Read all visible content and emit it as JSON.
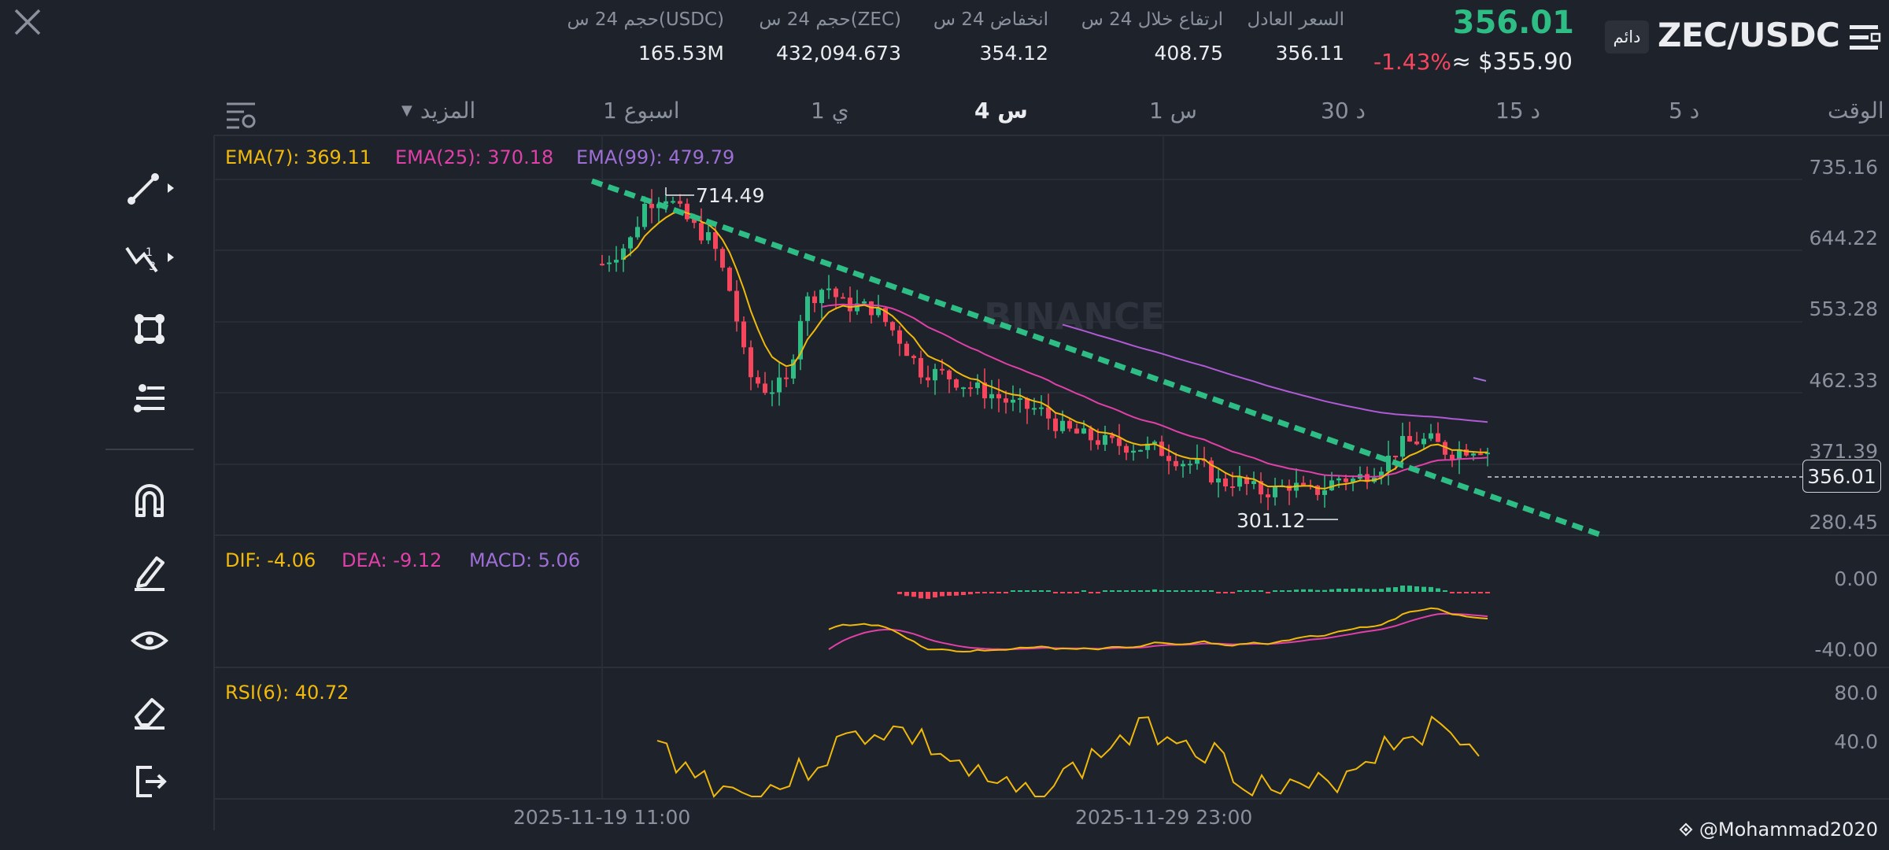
{
  "header": {
    "symbol": "ZEC/USDC",
    "badge": "دائم",
    "last_price": "356.01",
    "change_pct": "-1.43%",
    "price_usd": "≈ $355.90",
    "stats": [
      {
        "label": "السعر العادل",
        "value": "356.11"
      },
      {
        "label": "ارتفاع خلال 24 س",
        "value": "408.75"
      },
      {
        "label": "انخفاض 24 س",
        "value": "354.12"
      },
      {
        "label": "حجم 24 س(ZEC)",
        "value": "432,094.673"
      },
      {
        "label": "حجم 24 س(USDC)",
        "value": "165.53M"
      }
    ]
  },
  "timeframes": {
    "label": "الوقت",
    "items": [
      "5 د",
      "15 د",
      "30 د",
      "1 س",
      "4 س",
      "1 ي",
      "1 اسبوع"
    ],
    "active": "4 س",
    "more": "المزيد"
  },
  "indicators": {
    "ema7": "EMA(7): 369.11",
    "ema25": "EMA(25): 370.18",
    "ema99": "EMA(99): 479.79",
    "dif": "DIF: -4.06",
    "dea": "DEA: -9.12",
    "macd": "MACD: 5.06",
    "rsi": "RSI(6): 40.72"
  },
  "chart": {
    "price_axis": [
      "735.16",
      "644.22",
      "553.28",
      "462.33",
      "371.39",
      "280.45"
    ],
    "current_price_tag": "356.01",
    "high_label": "714.49",
    "low_label": "301.12",
    "macd_axis": [
      "0.00",
      "-40.00"
    ],
    "rsi_axis": [
      "80.0",
      "40.0"
    ],
    "dates": [
      "2025-11-19 11:00",
      "2025-11-29 23:00"
    ],
    "watermark": "BINANCE",
    "user_tag": "@Mohammad2020"
  },
  "colors": {
    "bg": "#1e222b",
    "up": "#2ebd85",
    "down": "#f6465d",
    "ema7": "#f0b90b",
    "ema25": "#e040a8",
    "ema99": "#9e6fd6"
  },
  "chart_data": {
    "type": "line",
    "x": [
      "2025-11-19 11:00",
      "2025-11-29 23:00"
    ],
    "series": [
      {
        "name": "EMA(7)",
        "last": 369.11
      },
      {
        "name": "EMA(25)",
        "last": 370.18
      },
      {
        "name": "EMA(99)",
        "last": 479.79
      }
    ],
    "ylim": [
      280.45,
      735.16
    ],
    "high": 714.49,
    "low": 301.12,
    "last_price": 356.01
  }
}
